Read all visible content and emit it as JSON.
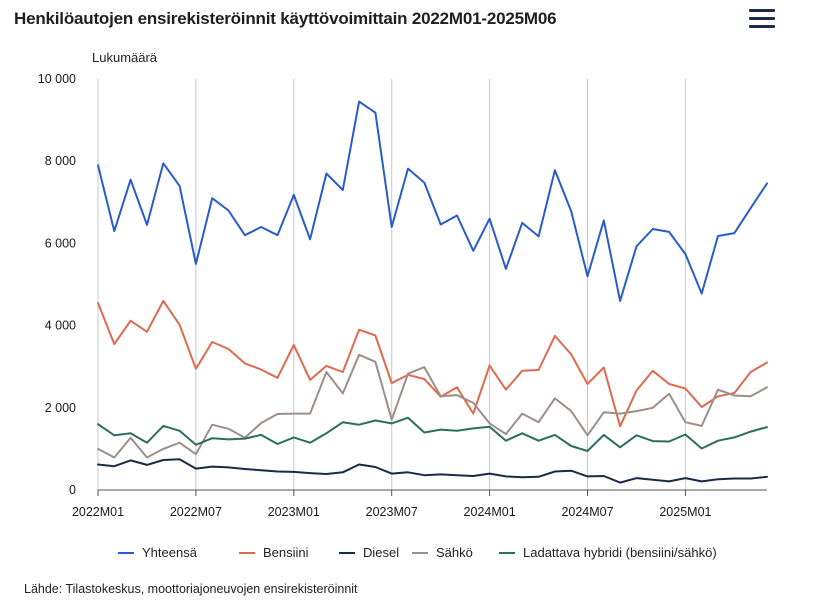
{
  "header": {
    "title": "Henkilöautojen ensirekisteröinnit käyttövoimittain 2022M01-2025M06",
    "menu_icon": "hamburger-menu-icon"
  },
  "footer": {
    "source": "Lähde: Tilastokeskus, moottoriajoneuvojen ensirekisteröinnit"
  },
  "chart_data": {
    "type": "line",
    "title": "Henkilöautojen ensirekisteröinnit käyttövoimittain 2022M01-2025M06",
    "ylabel": "Lukumäärä",
    "xlabel": "",
    "ylim": [
      0,
      10000
    ],
    "yticks": [
      0,
      2000,
      4000,
      6000,
      8000,
      10000
    ],
    "ytick_labels": [
      "0",
      "2 000",
      "4 000",
      "6 000",
      "8 000",
      "10 000"
    ],
    "x": [
      "2022M01",
      "2022M02",
      "2022M03",
      "2022M04",
      "2022M05",
      "2022M06",
      "2022M07",
      "2022M08",
      "2022M09",
      "2022M10",
      "2022M11",
      "2022M12",
      "2023M01",
      "2023M02",
      "2023M03",
      "2023M04",
      "2023M05",
      "2023M06",
      "2023M07",
      "2023M08",
      "2023M09",
      "2023M10",
      "2023M11",
      "2023M12",
      "2024M01",
      "2024M02",
      "2024M03",
      "2024M04",
      "2024M05",
      "2024M06",
      "2024M07",
      "2024M08",
      "2024M09",
      "2024M10",
      "2024M11",
      "2024M12",
      "2025M01",
      "2025M02",
      "2025M03",
      "2025M04",
      "2025M05",
      "2025M06"
    ],
    "xtick_labels": [
      "2022M01",
      "2022M07",
      "2023M01",
      "2023M07",
      "2024M01",
      "2024M07",
      "2025M01"
    ],
    "grid": "vertical",
    "legend_position": "bottom",
    "series": [
      {
        "name": "Yhteensä",
        "color": "#2a5cc9",
        "values": [
          7900,
          6300,
          7550,
          6450,
          7950,
          7400,
          5500,
          7100,
          6800,
          6200,
          6400,
          6200,
          7180,
          6100,
          7700,
          7300,
          9450,
          9180,
          6400,
          7820,
          7480,
          6460,
          6680,
          5820,
          6600,
          5380,
          6500,
          6170,
          7780,
          6780,
          5200,
          6560,
          4600,
          5930,
          6350,
          6280,
          5740,
          4780,
          6180,
          6250,
          6860,
          7460
        ]
      },
      {
        "name": "Bensiini",
        "color": "#e06a4f",
        "values": [
          4550,
          3550,
          4120,
          3850,
          4600,
          4020,
          2950,
          3600,
          3430,
          3080,
          2930,
          2730,
          3530,
          2680,
          3020,
          2870,
          3900,
          3760,
          2600,
          2800,
          2700,
          2270,
          2500,
          1860,
          3030,
          2440,
          2900,
          2920,
          3750,
          3300,
          2580,
          2980,
          1550,
          2420,
          2900,
          2580,
          2470,
          2020,
          2280,
          2360,
          2870,
          3100
        ]
      },
      {
        "name": "Diesel",
        "color": "#1b2b45",
        "values": [
          620,
          580,
          720,
          610,
          730,
          750,
          520,
          570,
          550,
          510,
          480,
          450,
          440,
          410,
          390,
          430,
          620,
          560,
          400,
          430,
          360,
          380,
          360,
          340,
          400,
          330,
          310,
          320,
          450,
          470,
          330,
          340,
          180,
          290,
          250,
          210,
          290,
          210,
          260,
          280,
          280,
          320
        ]
      },
      {
        "name": "Sähkö",
        "color": "#9c8f8a",
        "values": [
          1000,
          790,
          1270,
          790,
          1000,
          1150,
          870,
          1590,
          1490,
          1270,
          1630,
          1850,
          1860,
          1860,
          2870,
          2350,
          3290,
          3120,
          1710,
          2830,
          2990,
          2280,
          2310,
          2120,
          1620,
          1360,
          1860,
          1650,
          2230,
          1920,
          1330,
          1890,
          1860,
          1920,
          2000,
          2340,
          1650,
          1560,
          2440,
          2300,
          2280,
          2500
        ]
      },
      {
        "name": "Ladattava hybridi (bensiini/sähkö)",
        "color": "#2d6e5e",
        "values": [
          1600,
          1330,
          1380,
          1150,
          1560,
          1440,
          1100,
          1260,
          1230,
          1250,
          1340,
          1120,
          1280,
          1150,
          1380,
          1650,
          1590,
          1690,
          1620,
          1760,
          1400,
          1470,
          1440,
          1500,
          1540,
          1200,
          1380,
          1200,
          1340,
          1070,
          950,
          1340,
          1040,
          1330,
          1190,
          1180,
          1350,
          1010,
          1200,
          1280,
          1420,
          1530
        ]
      }
    ]
  }
}
